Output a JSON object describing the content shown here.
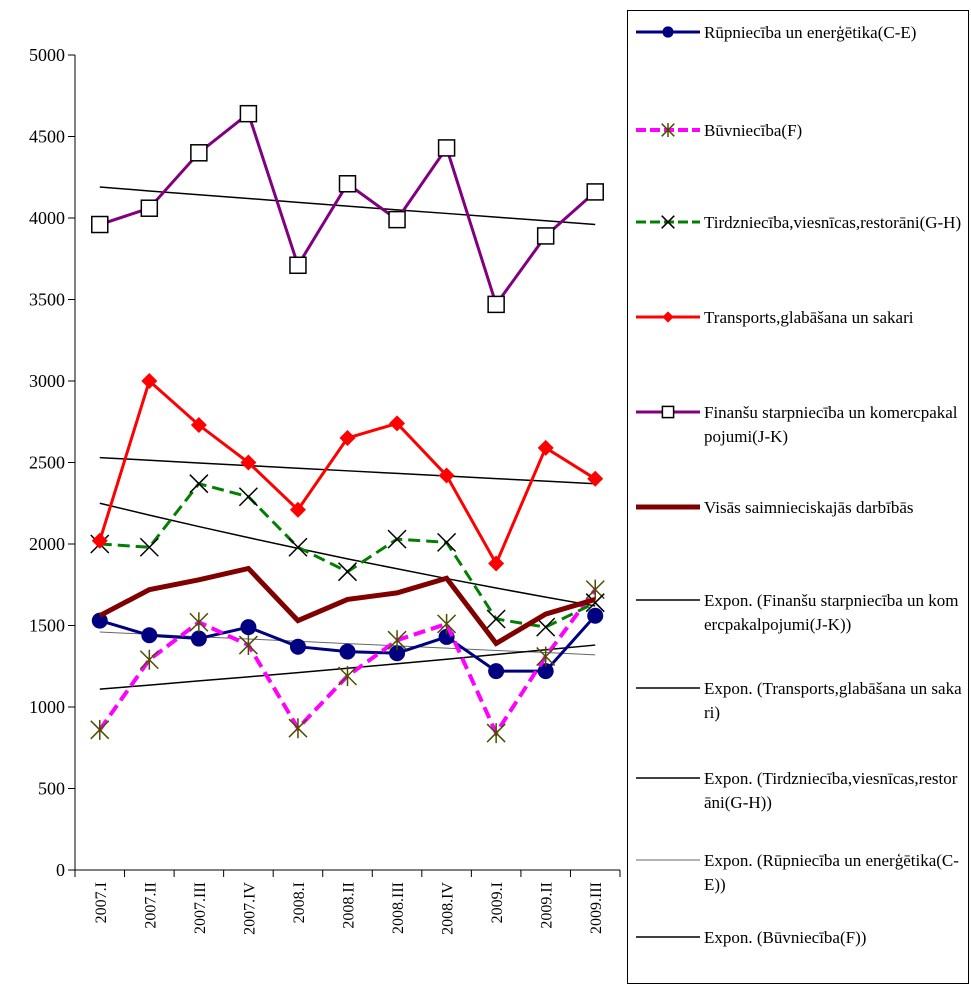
{
  "chart_data": {
    "type": "line",
    "categories": [
      "2007.I",
      "2007.II",
      "2007.III",
      "2007.IV",
      "2008.I",
      "2008.II",
      "2008.III",
      "2008.IV",
      "2009.I",
      "2009.II",
      "2009.III"
    ],
    "ylim": [
      0,
      5000
    ],
    "yticks": [
      0,
      500,
      1000,
      1500,
      2000,
      2500,
      3000,
      3500,
      4000,
      4500,
      5000
    ],
    "series": [
      {
        "name": "Rūpniecība un enerģētika(C-E)",
        "color": "#000080",
        "marker": "circle",
        "dash": false,
        "width": 3,
        "values": [
          1530,
          1440,
          1420,
          1490,
          1370,
          1340,
          1330,
          1430,
          1220,
          1220,
          1560
        ]
      },
      {
        "name": "Būvniecība(F)",
        "color": "#ff00ff",
        "marker": "asterisk",
        "dash": true,
        "width": 4,
        "values": [
          860,
          1290,
          1520,
          1380,
          870,
          1190,
          1410,
          1510,
          840,
          1310,
          1720
        ]
      },
      {
        "name": "Tirdzniecība,viesnīcas,restorāni(G-H)",
        "color": "#008000",
        "marker": "x",
        "dash": true,
        "width": 3,
        "values": [
          2000,
          1980,
          2370,
          2290,
          1980,
          1830,
          2030,
          2010,
          1540,
          1490,
          1640
        ]
      },
      {
        "name": "Transports,glabāšana un sakari",
        "color": "#ff0000",
        "marker": "diamond",
        "dash": false,
        "width": 3,
        "values": [
          2020,
          3000,
          2730,
          2500,
          2210,
          2650,
          2740,
          2420,
          1880,
          2590,
          2400
        ]
      },
      {
        "name": "Finanšu starpniecība un komercpakalpojumi(J-K)",
        "color": "#800080",
        "marker": "square",
        "dash": false,
        "width": 3,
        "values": [
          3960,
          4060,
          4400,
          4640,
          3710,
          4210,
          3990,
          4430,
          3470,
          3890,
          4160
        ]
      },
      {
        "name": "Visās saimnieciskajās darbībās",
        "color": "#800000",
        "marker": null,
        "dash": false,
        "width": 5,
        "values": [
          1560,
          1720,
          1780,
          1850,
          1530,
          1660,
          1700,
          1790,
          1390,
          1570,
          1660
        ]
      },
      {
        "name": "Expon. (Finanšu starpniecība un komercpakalpojumi(J-K))",
        "color": "#000000",
        "marker": null,
        "dash": false,
        "width": 1.5,
        "values": [
          4190,
          4166,
          4143,
          4120,
          4096,
          4073,
          4050,
          4028,
          4005,
          3983,
          3960
        ]
      },
      {
        "name": "Expon. (Transports,glabāšana un sakari)",
        "color": "#000000",
        "marker": null,
        "dash": false,
        "width": 1.5,
        "values": [
          2530,
          2514,
          2497,
          2481,
          2465,
          2449,
          2433,
          2417,
          2401,
          2386,
          2370
        ]
      },
      {
        "name": "Expon. (Tirdzniecība,viesnīcas,restorāni(G-H))",
        "color": "#000000",
        "marker": null,
        "dash": false,
        "width": 1.5,
        "values": [
          2250,
          2177,
          2107,
          2039,
          1973,
          1909,
          1848,
          1788,
          1730,
          1674,
          1620
        ]
      },
      {
        "name": "Expon. (Rūpniecība un enerģētika(C-E))",
        "color": "#666666",
        "marker": null,
        "dash": false,
        "width": 1,
        "values": [
          1460,
          1446,
          1431,
          1417,
          1403,
          1389,
          1375,
          1361,
          1347,
          1334,
          1320
        ]
      },
      {
        "name": "Expon. (Būvniecība(F))",
        "color": "#000000",
        "marker": null,
        "dash": false,
        "width": 1.5,
        "values": [
          1110,
          1134,
          1160,
          1185,
          1211,
          1238,
          1265,
          1293,
          1322,
          1351,
          1380
        ]
      }
    ]
  }
}
